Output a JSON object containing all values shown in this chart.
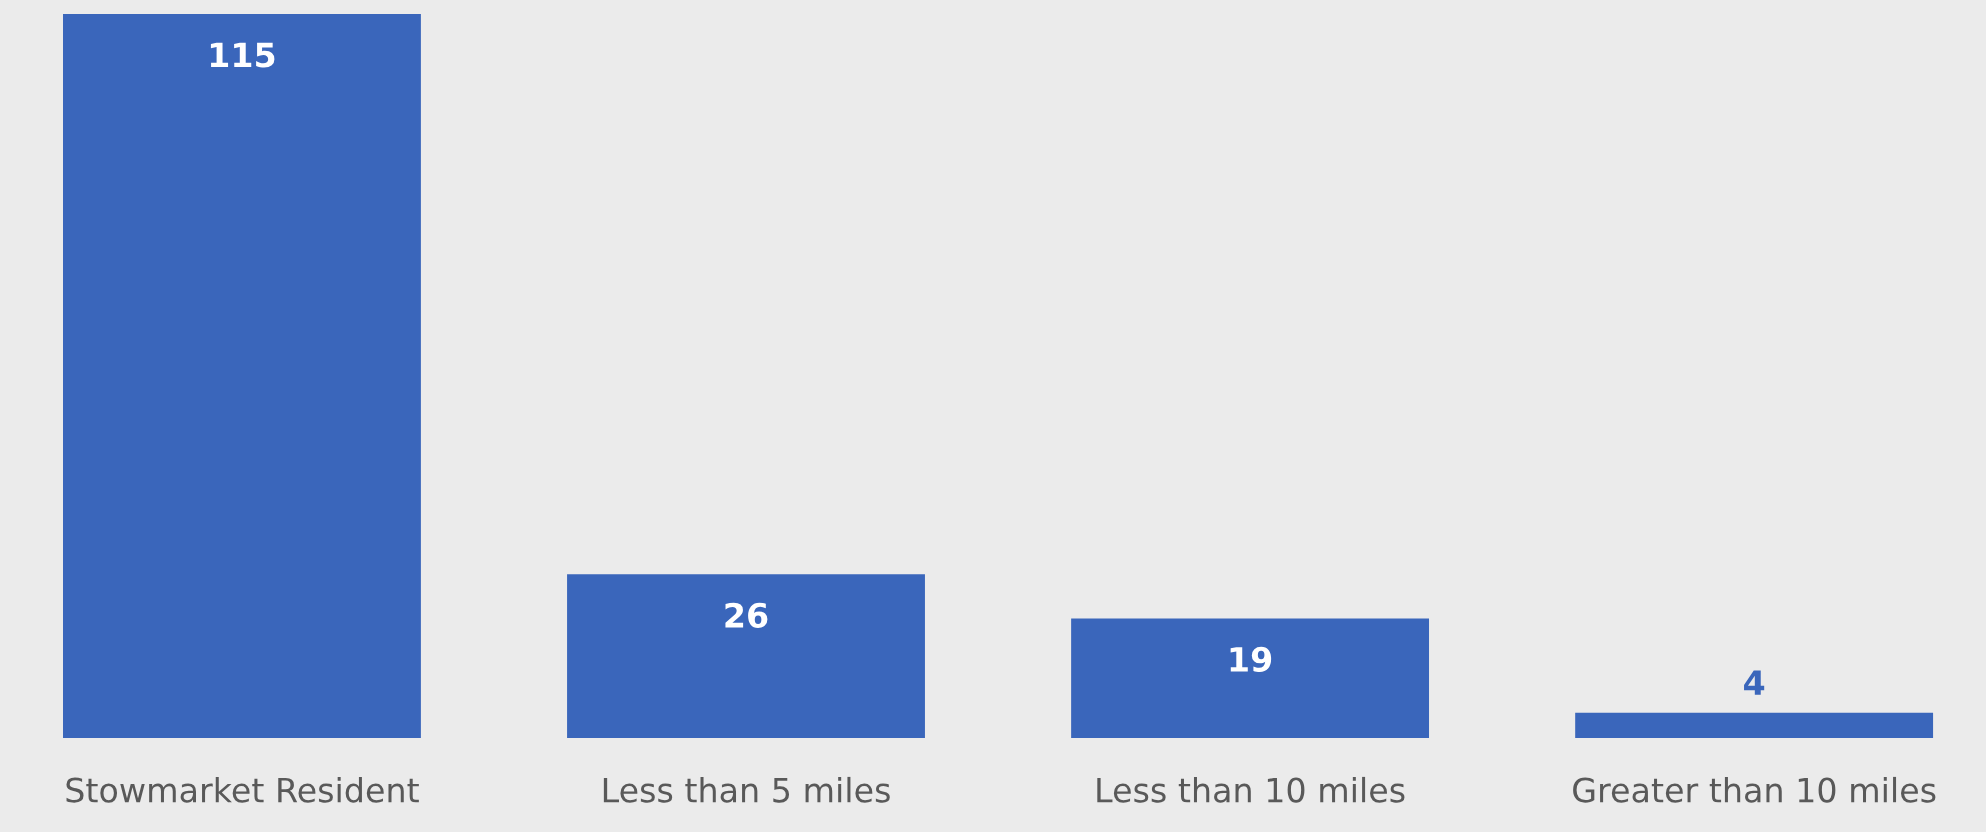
{
  "chart_data": {
    "type": "bar",
    "categories": [
      "Stowmarket Resident",
      "Less than 5 miles",
      "Less than 10 miles",
      "Greater than 10 miles"
    ],
    "values": [
      115,
      26,
      19,
      4
    ],
    "color": "#3a66bb",
    "data_labels": true,
    "grid": false,
    "legend": false
  }
}
